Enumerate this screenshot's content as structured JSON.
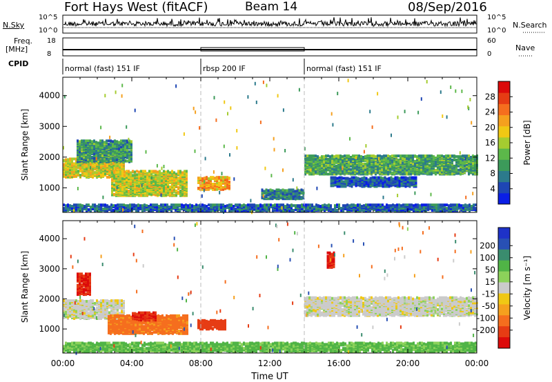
{
  "header": {
    "title": "Fort Hays West (fitACF)",
    "beam": "Beam 14",
    "date": "08/Sep/2016"
  },
  "top_panels": {
    "nsky_label": "N.Sky",
    "nsky_ticks": [
      "10^5",
      "10^0"
    ],
    "nsearch_label": "N.Search",
    "nsearch_ticks": [
      "10^5",
      "10^0"
    ],
    "freq_label_1": "Freq.",
    "freq_label_2": "[MHz]",
    "freq_ticks": [
      "18",
      "8"
    ],
    "nave_label": "Nave",
    "nave_ticks": [
      "60",
      "0"
    ],
    "cpid_label": "CPID",
    "cpid_segments": [
      {
        "label": "normal (fast) 151 IF",
        "start_hour": 0
      },
      {
        "label": "rbsp 200 IF",
        "start_hour": 8
      },
      {
        "label": "normal (fast) 151 IF",
        "start_hour": 14
      }
    ]
  },
  "chart_data": [
    {
      "type": "heatmap",
      "panel": "power",
      "xlabel": "",
      "ylabel": "Slant Range [km]",
      "xlim": [
        0,
        24
      ],
      "ylim": [
        200,
        4600
      ],
      "yticks": [
        "1000",
        "2000",
        "3000",
        "4000"
      ],
      "colorbar_label": "Power [dB]",
      "colorbar_ticks": [
        "4",
        "8",
        "12",
        "16",
        "20",
        "24",
        "28"
      ],
      "colorbar_range": [
        0,
        32
      ],
      "colorbar_colors": [
        "#0a1ee6",
        "#1e46b4",
        "#2c7a8c",
        "#3c9a5a",
        "#5cb84a",
        "#a5cc30",
        "#f0c814",
        "#f5a01e",
        "#f56e1e",
        "#e63c14",
        "#dc0a0a"
      ],
      "regions": [
        {
          "start_hour": 0.0,
          "end_hour": 3.6,
          "range_min": 1300,
          "range_max": 1900,
          "mean_value": 18
        },
        {
          "start_hour": 0.8,
          "end_hour": 4.0,
          "range_min": 1800,
          "range_max": 2500,
          "mean_value": 10
        },
        {
          "start_hour": 2.8,
          "end_hour": 7.2,
          "range_min": 700,
          "range_max": 1500,
          "mean_value": 17
        },
        {
          "start_hour": 7.8,
          "end_hour": 9.6,
          "range_min": 900,
          "range_max": 1300,
          "mean_value": 22
        },
        {
          "start_hour": 11.5,
          "end_hour": 14.0,
          "range_min": 600,
          "range_max": 900,
          "mean_value": 8
        },
        {
          "start_hour": 14.0,
          "end_hour": 24.0,
          "range_min": 1400,
          "range_max": 2000,
          "mean_value": 11
        },
        {
          "start_hour": 15.5,
          "end_hour": 20.5,
          "range_min": 1000,
          "range_max": 1300,
          "mean_value": 5
        },
        {
          "start_hour": 0.0,
          "end_hour": 24.0,
          "range_min": 200,
          "range_max": 400,
          "mean_value": 6
        }
      ]
    },
    {
      "type": "heatmap",
      "panel": "velocity",
      "xlabel": "Time UT",
      "ylabel": "Slant Range [km]",
      "xlim": [
        0,
        24
      ],
      "ylim": [
        200,
        4600
      ],
      "xticks": [
        "00:00",
        "04:00",
        "08:00",
        "12:00",
        "16:00",
        "20:00",
        "00:00"
      ],
      "yticks": [
        "1000",
        "2000",
        "3000",
        "4000"
      ],
      "colorbar_label": "Velocity [m s⁻¹]",
      "colorbar_ticks": [
        "200",
        "100",
        "50",
        "15",
        "-15",
        "-50",
        "-100",
        "-200"
      ],
      "colorbar_colors": [
        "#1e32c8",
        "#2850b4",
        "#3a8c6e",
        "#50b446",
        "#8cd25a",
        "#cbcbcb",
        "#f0c814",
        "#f5a01e",
        "#f56e1e",
        "#e63c14",
        "#dc0a0a"
      ],
      "regions": [
        {
          "start_hour": 0.0,
          "end_hour": 3.6,
          "range_min": 1300,
          "range_max": 1900,
          "mean_value": 0
        },
        {
          "start_hour": 0.8,
          "end_hour": 1.6,
          "range_min": 2100,
          "range_max": 2800,
          "mean_value": -250
        },
        {
          "start_hour": 2.6,
          "end_hour": 7.2,
          "range_min": 800,
          "range_max": 1400,
          "mean_value": -90
        },
        {
          "start_hour": 4.0,
          "end_hour": 5.4,
          "range_min": 1250,
          "range_max": 1500,
          "mean_value": -250
        },
        {
          "start_hour": 7.8,
          "end_hour": 9.4,
          "range_min": 950,
          "range_max": 1250,
          "mean_value": -220
        },
        {
          "start_hour": 14.0,
          "end_hour": 24.0,
          "range_min": 1400,
          "range_max": 2000,
          "mean_value": 0
        },
        {
          "start_hour": 15.3,
          "end_hour": 15.7,
          "range_min": 3000,
          "range_max": 3500,
          "mean_value": -250
        },
        {
          "start_hour": 0.0,
          "end_hour": 24.0,
          "range_min": 200,
          "range_max": 500,
          "mean_value": 40
        }
      ]
    }
  ]
}
